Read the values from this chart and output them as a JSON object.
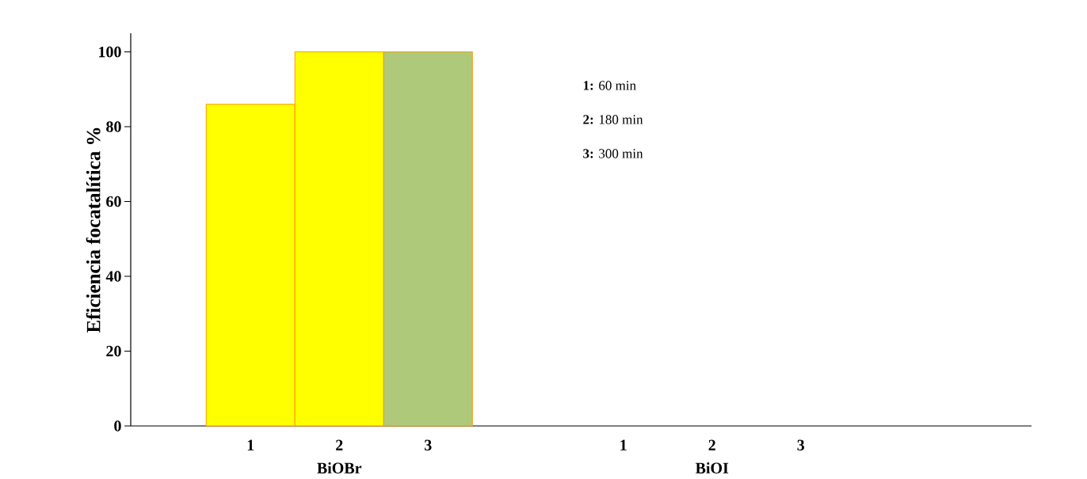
{
  "chart_data": {
    "type": "bar",
    "ylabel": "Eficiencia focatalítica  %",
    "categories": [
      "1",
      "2",
      "3",
      "1",
      "2",
      "3"
    ],
    "values": [
      86,
      100,
      100,
      null,
      null,
      null
    ],
    "colors": [
      "#ffff00",
      "#ffff00",
      "#afc97a",
      "#ffff00",
      "#ffff00",
      "#afc97a"
    ],
    "ylim": [
      0,
      105
    ],
    "yticks": [
      0,
      20,
      40,
      60,
      80,
      100
    ],
    "grid": false,
    "annotations": [
      "BiOBr",
      "BiOI",
      "**1:** 60 min",
      "**2:** 180 min",
      "**3:** 300 min"
    ]
  }
}
